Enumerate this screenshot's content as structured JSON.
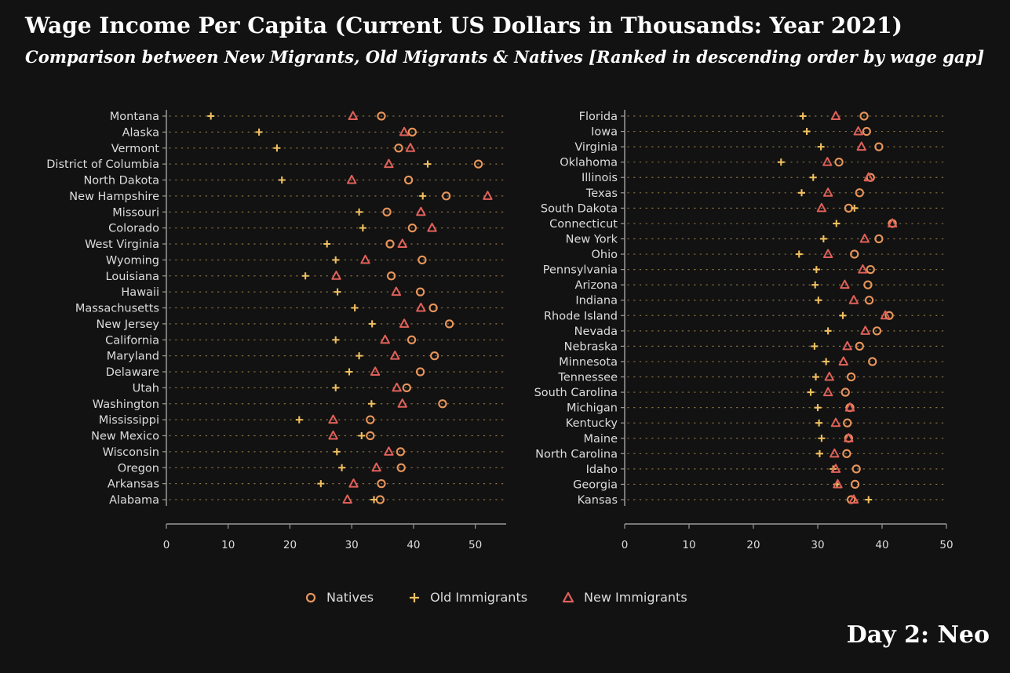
{
  "title": "Wage Income Per Capita (Current US Dollars in Thousands: Year 2021)",
  "subtitle": "Comparison between New Migrants, Old Migrants & Natives [Ranked in descending order by wage gap]",
  "signature": "Day 2: Neo",
  "legend": {
    "natives": "Natives",
    "old": "Old Immigrants",
    "new": "New Immigrants"
  },
  "colors": {
    "background": "#121212",
    "natives": "#e8955a",
    "old": "#f0c060",
    "new": "#e0605a",
    "text": "#dcdcdc",
    "axis": "#9a9a9a",
    "dots": "#8a7440"
  },
  "chart_data": [
    {
      "type": "scatter",
      "xlim": [
        0,
        55
      ],
      "ticks": [
        0,
        10,
        20,
        30,
        40,
        50
      ],
      "tick_labels": [
        "0",
        "10",
        "20",
        "30",
        "40",
        "50"
      ],
      "categories": [
        "Montana",
        "Alaska",
        "Vermont",
        "District of Columbia",
        "North Dakota",
        "New Hampshire",
        "Missouri",
        "Colorado",
        "West Virginia",
        "Wyoming",
        "Louisiana",
        "Hawaii",
        "Massachusetts",
        "New Jersey",
        "California",
        "Maryland",
        "Delaware",
        "Utah",
        "Washington",
        "Mississippi",
        "New Mexico",
        "Wisconsin",
        "Oregon",
        "Arkansas",
        "Alabama"
      ],
      "series": [
        {
          "name": "Natives",
          "values": [
            34.8,
            39.8,
            37.6,
            50.5,
            39.2,
            45.3,
            35.7,
            39.8,
            36.2,
            41.4,
            36.4,
            41.1,
            43.2,
            45.8,
            39.7,
            43.4,
            41.1,
            38.9,
            44.7,
            33.0,
            33.0,
            37.9,
            38.0,
            34.8,
            34.6
          ]
        },
        {
          "name": "Old Immigrants",
          "values": [
            7.2,
            15.0,
            17.9,
            42.3,
            18.7,
            41.5,
            31.2,
            31.8,
            26.0,
            27.4,
            22.5,
            27.7,
            30.5,
            33.3,
            27.4,
            31.2,
            29.6,
            27.4,
            33.2,
            21.5,
            31.6,
            27.6,
            28.4,
            25.0,
            33.6
          ]
        },
        {
          "name": "New Immigrants",
          "values": [
            30.2,
            38.5,
            39.5,
            36.0,
            30.0,
            52.0,
            41.2,
            43.0,
            38.2,
            32.2,
            27.5,
            37.2,
            41.2,
            38.5,
            35.4,
            37.0,
            33.8,
            37.3,
            38.2,
            27.0,
            27.0,
            36.0,
            34.0,
            30.3,
            29.3
          ]
        }
      ]
    },
    {
      "type": "scatter",
      "xlim": [
        0,
        50
      ],
      "ticks": [
        0,
        10,
        20,
        30,
        40,
        50
      ],
      "tick_labels": [
        "0",
        "10",
        "20",
        "30",
        "40",
        "50"
      ],
      "categories": [
        "Florida",
        "Iowa",
        "Virginia",
        "Oklahoma",
        "Illinois",
        "Texas",
        "South Dakota",
        "Connecticut",
        "New York",
        "Ohio",
        "Pennsylvania",
        "Arizona",
        "Indiana",
        "Rhode Island",
        "Nevada",
        "Nebraska",
        "Minnesota",
        "Tennessee",
        "South Carolina",
        "Michigan",
        "Kentucky",
        "Maine",
        "North Carolina",
        "Idaho",
        "Georgia",
        "Kansas"
      ],
      "series": [
        {
          "name": "Natives",
          "values": [
            37.2,
            37.6,
            39.5,
            33.3,
            38.2,
            36.5,
            34.8,
            41.6,
            39.5,
            35.7,
            38.2,
            37.8,
            38.0,
            41.1,
            39.2,
            36.5,
            38.5,
            35.2,
            34.3,
            35.0,
            34.6,
            34.8,
            34.5,
            36.0,
            35.8,
            35.2
          ]
        },
        {
          "name": "Old Immigrants",
          "values": [
            27.7,
            28.3,
            30.5,
            24.3,
            29.3,
            27.5,
            35.7,
            32.9,
            30.9,
            27.1,
            29.8,
            29.6,
            30.1,
            33.9,
            31.6,
            29.5,
            31.3,
            29.7,
            28.9,
            30.0,
            30.2,
            30.6,
            30.3,
            32.4,
            33.0,
            37.9
          ]
        },
        {
          "name": "New Immigrants",
          "values": [
            32.8,
            36.3,
            36.8,
            31.5,
            37.9,
            31.6,
            30.6,
            41.6,
            37.3,
            31.6,
            37.0,
            34.2,
            35.6,
            40.5,
            37.4,
            34.6,
            34.0,
            31.8,
            31.6,
            35.0,
            32.8,
            34.8,
            32.6,
            32.8,
            33.1,
            35.6
          ]
        }
      ]
    }
  ]
}
